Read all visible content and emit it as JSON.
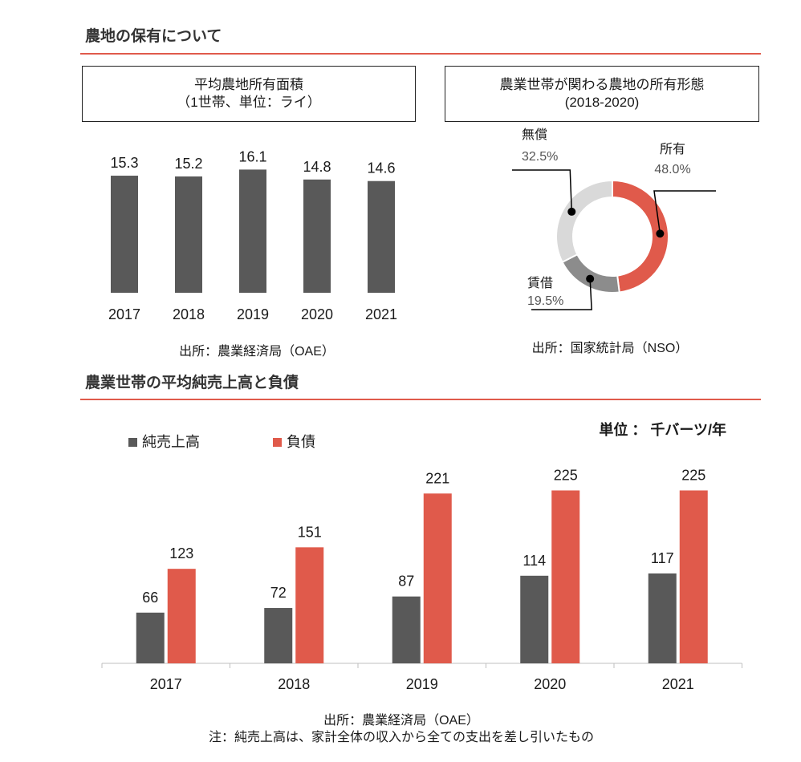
{
  "section1": {
    "title": "農地の保有について"
  },
  "section2": {
    "title": "農業世帯の平均純売上高と負債"
  },
  "colors": {
    "dark": "#595959",
    "red": "#e05a4b",
    "light": "#d9d9d9",
    "mid": "#8c8c8c",
    "rule": "#e05a4b"
  },
  "chart_data": [
    {
      "type": "bar",
      "title": "平均農地所有面積",
      "subtitle": "（1世帯、単位：ライ）",
      "categories": [
        "2017",
        "2018",
        "2019",
        "2020",
        "2021"
      ],
      "values": [
        15.3,
        15.2,
        16.1,
        14.8,
        14.6
      ],
      "data_labels": [
        "15.3",
        "15.2",
        "16.1",
        "14.8",
        "14.6"
      ],
      "xlabel": "",
      "ylabel": "",
      "source": "出所：農業経済局（OAE）"
    },
    {
      "type": "pie",
      "title": "農業世帯が関わる農地の所有形態",
      "subtitle": "(2018-2020)",
      "slices": [
        {
          "label": "所有",
          "value": 48.0,
          "display": "48.0%"
        },
        {
          "label": "賃借",
          "value": 19.5,
          "display": "19.5%"
        },
        {
          "label": "無償",
          "value": 32.5,
          "display": "32.5%"
        }
      ],
      "source": "出所：国家統計局（NSO）"
    },
    {
      "type": "bar",
      "unit": "単位 ： 千バーツ/年",
      "categories": [
        "2017",
        "2018",
        "2019",
        "2020",
        "2021"
      ],
      "series": [
        {
          "name": "純売上高",
          "values": [
            66,
            72,
            87,
            114,
            117
          ]
        },
        {
          "name": "負債",
          "values": [
            123,
            151,
            221,
            225,
            225
          ]
        }
      ],
      "legend": "top-left",
      "source": "出所：農業経済局（OAE）",
      "note": "注：純売上高は、家計全体の収入から全ての支出を差し引いたもの"
    }
  ]
}
